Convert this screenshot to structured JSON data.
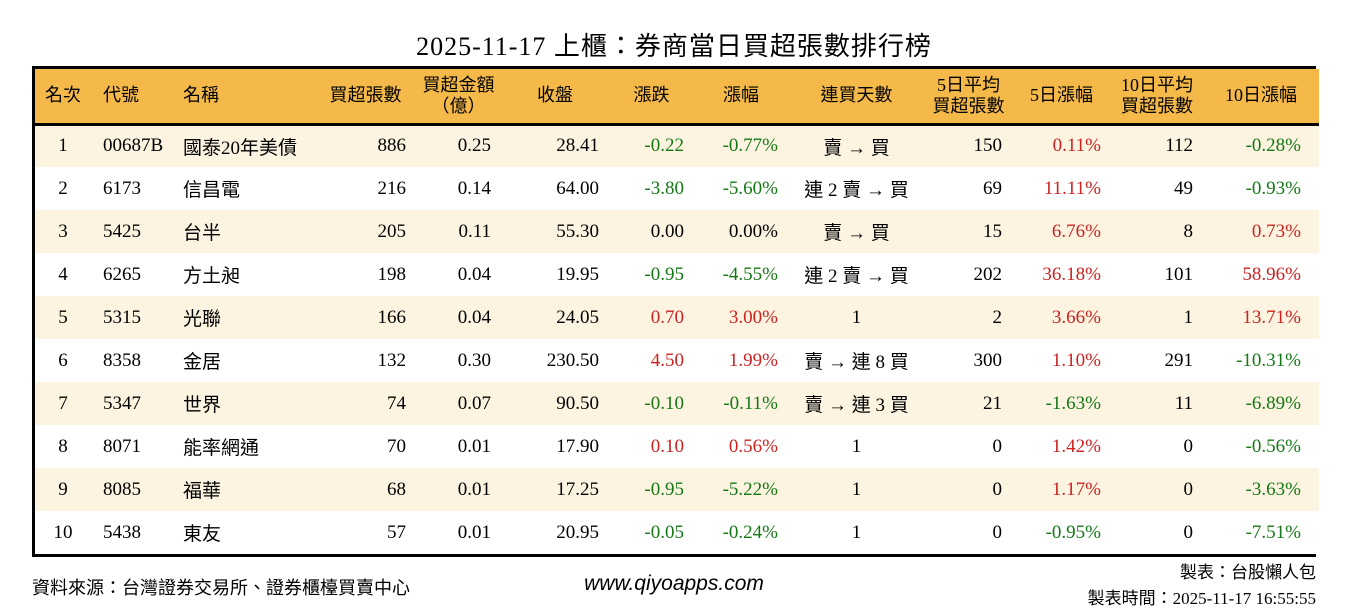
{
  "title": "2025-11-17 上櫃：券商當日買超張數排行榜",
  "colors": {
    "header_bg": "#F5B94A",
    "stripe_bg": "#FCF4E0",
    "up_red": "#CC2222",
    "down_green": "#157815",
    "border": "#000000"
  },
  "table": {
    "headers": [
      "名次",
      "代號",
      "名稱",
      "買超張數",
      "買超金額\n（億）",
      "收盤",
      "漲跌",
      "漲幅",
      "連買天數",
      "5日平均\n買超張數",
      "5日漲幅",
      "10日平均\n買超張數",
      "10日漲幅"
    ]
  },
  "chart_data": {
    "type": "table",
    "title": "2025-11-17 上櫃：券商當日買超張數排行榜",
    "columns": [
      "名次",
      "代號",
      "名稱",
      "買超張數",
      "買超金額（億）",
      "收盤",
      "漲跌",
      "漲幅",
      "連買天數",
      "5日平均買超張數",
      "5日漲幅",
      "10日平均買超張數",
      "10日漲幅"
    ],
    "rows": [
      [
        "1",
        "00687B",
        "國泰20年美債",
        "886",
        "0.25",
        "28.41",
        "-0.22",
        "-0.77%",
        "賣 → 買",
        "150",
        "0.11%",
        "112",
        "-0.28%"
      ],
      [
        "2",
        "6173",
        "信昌電",
        "216",
        "0.14",
        "64.00",
        "-3.80",
        "-5.60%",
        "連 2 賣 → 買",
        "69",
        "11.11%",
        "49",
        "-0.93%"
      ],
      [
        "3",
        "5425",
        "台半",
        "205",
        "0.11",
        "55.30",
        "0.00",
        "0.00%",
        "賣 → 買",
        "15",
        "6.76%",
        "8",
        "0.73%"
      ],
      [
        "4",
        "6265",
        "方土昶",
        "198",
        "0.04",
        "19.95",
        "-0.95",
        "-4.55%",
        "連 2 賣 → 買",
        "202",
        "36.18%",
        "101",
        "58.96%"
      ],
      [
        "5",
        "5315",
        "光聯",
        "166",
        "0.04",
        "24.05",
        "0.70",
        "3.00%",
        "1",
        "2",
        "3.66%",
        "1",
        "13.71%"
      ],
      [
        "6",
        "8358",
        "金居",
        "132",
        "0.30",
        "230.50",
        "4.50",
        "1.99%",
        "賣 → 連 8 買",
        "300",
        "1.10%",
        "291",
        "-10.31%"
      ],
      [
        "7",
        "5347",
        "世界",
        "74",
        "0.07",
        "90.50",
        "-0.10",
        "-0.11%",
        "賣 → 連 3 買",
        "21",
        "-1.63%",
        "11",
        "-6.89%"
      ],
      [
        "8",
        "8071",
        "能率網通",
        "70",
        "0.01",
        "17.90",
        "0.10",
        "0.56%",
        "1",
        "0",
        "1.42%",
        "0",
        "-0.56%"
      ],
      [
        "9",
        "8085",
        "福華",
        "68",
        "0.01",
        "17.25",
        "-0.95",
        "-5.22%",
        "1",
        "0",
        "1.17%",
        "0",
        "-3.63%"
      ],
      [
        "10",
        "5438",
        "東友",
        "57",
        "0.01",
        "20.95",
        "-0.05",
        "-0.24%",
        "1",
        "0",
        "-0.95%",
        "0",
        "-7.51%"
      ]
    ]
  },
  "footer": {
    "source": "資料來源：台灣證券交易所、證券櫃檯買賣中心",
    "url": "www.qiyoapps.com",
    "maker": "製表：台股懶人包",
    "generated": "製表時間：2025-11-17 16:55:55"
  }
}
